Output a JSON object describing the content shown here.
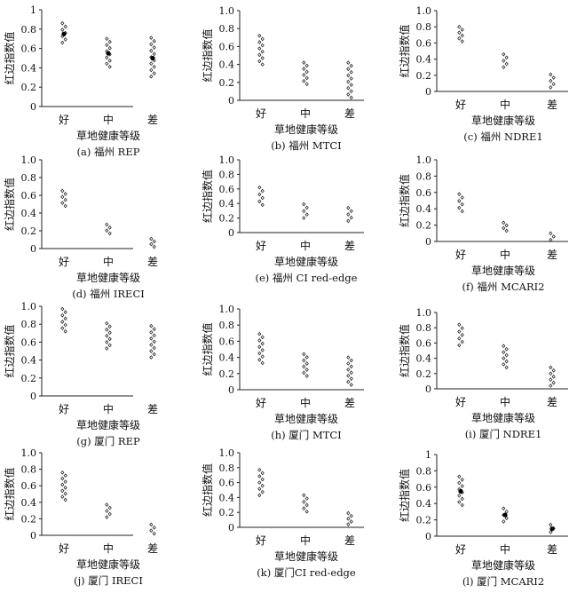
{
  "shared": {
    "xlabel": "草地健康等级",
    "ylabel": "红边指数值",
    "categories": [
      "好",
      "中",
      "差"
    ]
  },
  "chart_data": [
    {
      "type": "scatter",
      "caption": "(a) 福州 REP",
      "ylim": [
        0,
        1
      ],
      "yticks": [
        "0",
        "0.2",
        "0.4",
        "0.6",
        "0.8",
        "1"
      ],
      "series": [
        {
          "category": "好",
          "range": [
            0.66,
            0.86
          ],
          "mean": 0.75
        },
        {
          "category": "中",
          "range": [
            0.41,
            0.7
          ],
          "mean": 0.55
        },
        {
          "category": "差",
          "range": [
            0.31,
            0.71
          ],
          "mean": 0.5
        }
      ]
    },
    {
      "type": "scatter",
      "caption": "(b) 福州 MTCI",
      "ylim": [
        0,
        1
      ],
      "yticks": [
        "0",
        "0.2",
        "0.4",
        "0.6",
        "0.8",
        "1.0"
      ],
      "series": [
        {
          "category": "好",
          "range": [
            0.4,
            0.72
          ]
        },
        {
          "category": "中",
          "range": [
            0.18,
            0.42
          ]
        },
        {
          "category": "差",
          "range": [
            0.03,
            0.42
          ]
        }
      ]
    },
    {
      "type": "scatter",
      "caption": "(c) 福州 NDRE1",
      "ylim": [
        0,
        1
      ],
      "yticks": [
        "0",
        "0.2",
        "0.4",
        "0.6",
        "0.8",
        "1.0"
      ],
      "series": [
        {
          "category": "好",
          "range": [
            0.62,
            0.8
          ]
        },
        {
          "category": "中",
          "range": [
            0.3,
            0.46
          ]
        },
        {
          "category": "差",
          "range": [
            0.05,
            0.21
          ]
        }
      ]
    },
    {
      "type": "scatter",
      "caption": "(d) 福州 IRECI",
      "ylim": [
        0,
        1
      ],
      "yticks": [
        "0",
        "0.2",
        "0.4",
        "0.6",
        "0.8",
        "1.0"
      ],
      "series": [
        {
          "category": "好",
          "range": [
            0.48,
            0.65
          ]
        },
        {
          "category": "中",
          "range": [
            0.17,
            0.27
          ]
        },
        {
          "category": "差",
          "range": [
            0.02,
            0.11
          ]
        }
      ]
    },
    {
      "type": "scatter",
      "caption": "(e) 福州 CI red-edge",
      "ylim": [
        0,
        1
      ],
      "yticks": [
        "0",
        "0.2",
        "0.4",
        "0.6",
        "0.8",
        "1.0"
      ],
      "series": [
        {
          "category": "好",
          "range": [
            0.38,
            0.62
          ]
        },
        {
          "category": "中",
          "range": [
            0.2,
            0.39
          ]
        },
        {
          "category": "差",
          "range": [
            0.16,
            0.34
          ]
        }
      ]
    },
    {
      "type": "scatter",
      "caption": "(f) 福州 MCARI2",
      "ylim": [
        0,
        1
      ],
      "yticks": [
        "0",
        "0.2",
        "0.4",
        "0.6",
        "0.8",
        "1.0"
      ],
      "series": [
        {
          "category": "好",
          "range": [
            0.37,
            0.58
          ]
        },
        {
          "category": "中",
          "range": [
            0.13,
            0.23
          ]
        },
        {
          "category": "差",
          "range": [
            0.02,
            0.1
          ]
        }
      ]
    },
    {
      "type": "scatter",
      "caption": "(g) 厦门 REP",
      "ylim": [
        0,
        1
      ],
      "yticks": [
        "0",
        "0.2",
        "0.4",
        "0.6",
        "0.8",
        "1.0"
      ],
      "series": [
        {
          "category": "好",
          "range": [
            0.72,
            0.97
          ]
        },
        {
          "category": "中",
          "range": [
            0.53,
            0.81
          ]
        },
        {
          "category": "差",
          "range": [
            0.43,
            0.78
          ]
        }
      ]
    },
    {
      "type": "scatter",
      "caption": "(h) 厦门 MTCI",
      "ylim": [
        0,
        1
      ],
      "yticks": [
        "0",
        "0.2",
        "0.4",
        "0.6",
        "0.8",
        "1.0"
      ],
      "series": [
        {
          "category": "好",
          "range": [
            0.33,
            0.69
          ]
        },
        {
          "category": "中",
          "range": [
            0.17,
            0.44
          ]
        },
        {
          "category": "差",
          "range": [
            0.06,
            0.4
          ]
        }
      ]
    },
    {
      "type": "scatter",
      "caption": "(i) 厦门 NDRE1",
      "ylim": [
        0,
        1
      ],
      "yticks": [
        "0",
        "0.2",
        "0.4",
        "0.6",
        "0.8",
        "1.0"
      ],
      "series": [
        {
          "category": "好",
          "range": [
            0.57,
            0.84
          ]
        },
        {
          "category": "中",
          "range": [
            0.28,
            0.56
          ]
        },
        {
          "category": "差",
          "range": [
            0.04,
            0.28
          ]
        }
      ]
    },
    {
      "type": "scatter",
      "caption": "(j) 厦门 IRECI",
      "ylim": [
        0,
        1
      ],
      "yticks": [
        "0",
        "0.2",
        "0.4",
        "0.6",
        "0.8",
        "1.0"
      ],
      "series": [
        {
          "category": "好",
          "range": [
            0.43,
            0.76
          ]
        },
        {
          "category": "中",
          "range": [
            0.22,
            0.37
          ]
        },
        {
          "category": "差",
          "range": [
            0.02,
            0.13
          ]
        }
      ]
    },
    {
      "type": "scatter",
      "caption": "(k) 厦门CI red-edge",
      "ylim": [
        0,
        1
      ],
      "yticks": [
        "0",
        "0.2",
        "0.4",
        "0.6",
        "0.8",
        "1.0"
      ],
      "series": [
        {
          "category": "好",
          "range": [
            0.43,
            0.77
          ]
        },
        {
          "category": "中",
          "range": [
            0.21,
            0.43
          ]
        },
        {
          "category": "差",
          "range": [
            0.04,
            0.19
          ]
        }
      ]
    },
    {
      "type": "scatter",
      "caption": "(l) 厦门 MCARI2",
      "ylim": [
        0,
        1
      ],
      "yticks": [
        "0",
        "0.2",
        "0.4",
        "0.6",
        "0.8",
        "1"
      ],
      "series": [
        {
          "category": "好",
          "range": [
            0.38,
            0.73
          ],
          "mean": 0.55
        },
        {
          "category": "中",
          "range": [
            0.18,
            0.34
          ],
          "mean": 0.26
        },
        {
          "category": "差",
          "range": [
            0.05,
            0.14
          ],
          "mean": 0.09
        }
      ]
    }
  ]
}
